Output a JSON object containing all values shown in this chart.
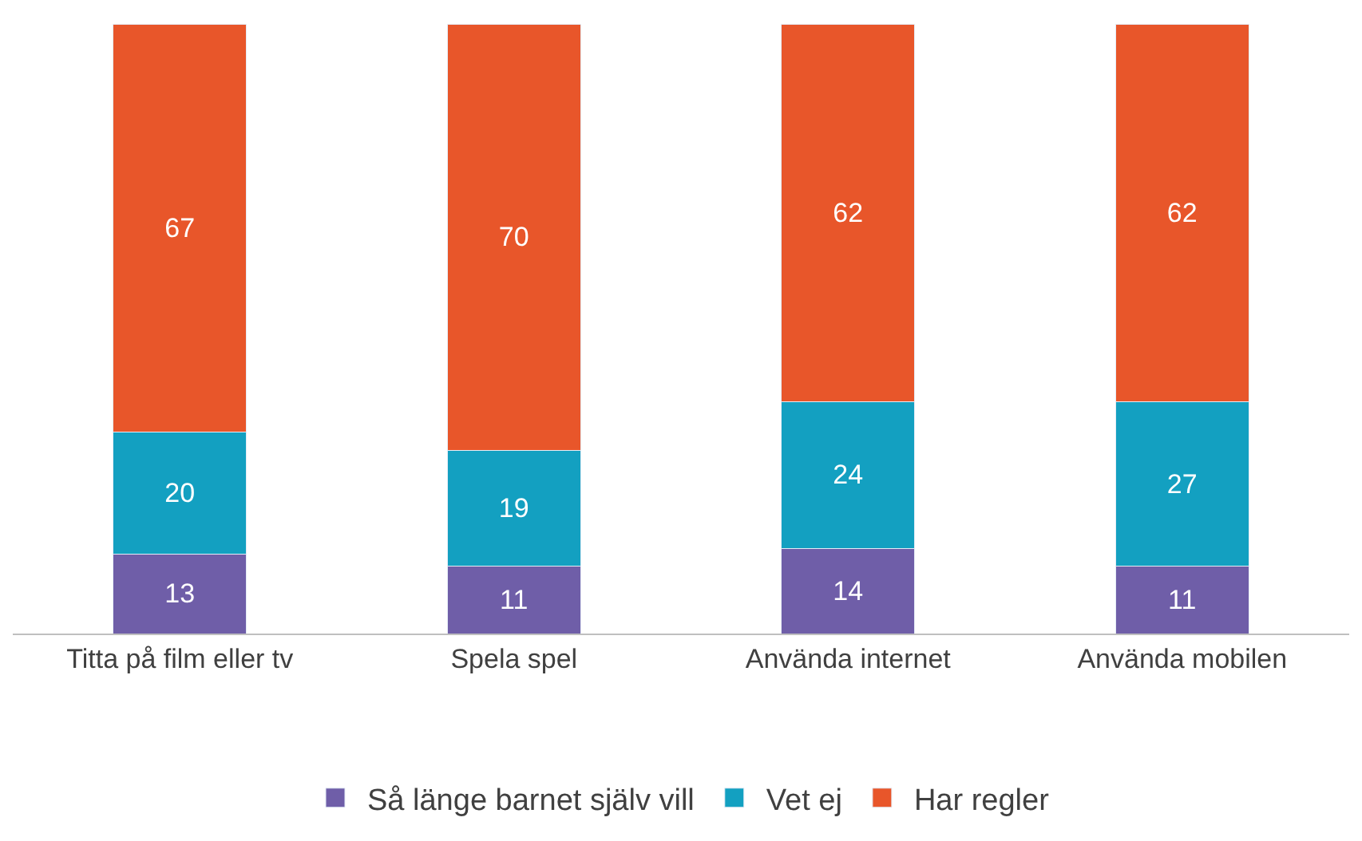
{
  "chart_data": {
    "type": "bar",
    "stacked": true,
    "categories": [
      "Titta på film eller tv",
      "Spela spel",
      "Använda internet",
      "Använda mobilen"
    ],
    "series": [
      {
        "name": "Så länge barnet själv vill",
        "color": "#6f5ea8",
        "values": [
          13,
          11,
          14,
          11
        ]
      },
      {
        "name": "Vet ej",
        "color": "#13a0c1",
        "values": [
          20,
          19,
          24,
          27
        ]
      },
      {
        "name": "Har regler",
        "color": "#e8562a",
        "values": [
          67,
          70,
          62,
          62
        ]
      }
    ],
    "ylim": [
      0,
      100
    ],
    "tick_labels": "x",
    "data_labels": true,
    "legend": "bottom"
  }
}
